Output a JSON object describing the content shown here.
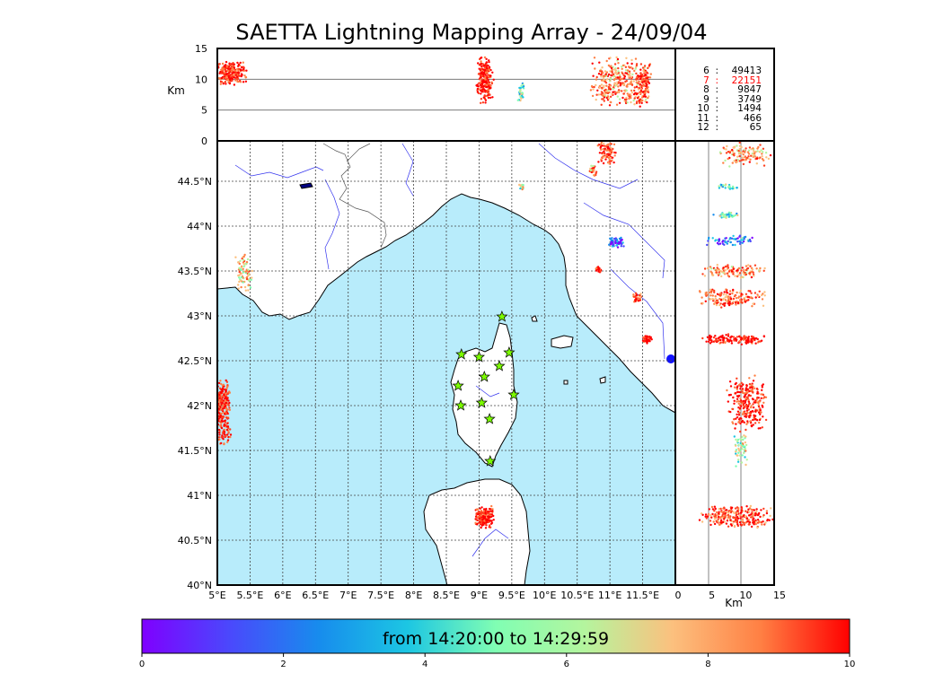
{
  "title": "SAETTA Lightning Mapping Array - 24/09/04",
  "alt_axis": {
    "label": "Km",
    "ticks": [
      "15",
      "10",
      "5",
      "0"
    ],
    "range": [
      0,
      15
    ]
  },
  "map": {
    "lon_range": [
      5.0,
      12.0
    ],
    "lat_range": [
      40.0,
      44.95
    ],
    "lon_ticks": [
      "5°E",
      "5.5°E",
      "6°E",
      "6.5°E",
      "7°E",
      "7.5°E",
      "8°E",
      "8.5°E",
      "9°E",
      "9.5°E",
      "10°E",
      "10.5°E",
      "11°E",
      "11.5°E"
    ],
    "lat_ticks": [
      "44.5°N",
      "44°N",
      "43.5°N",
      "43°N",
      "42.5°N",
      "42°N",
      "41.5°N",
      "41°N",
      "40.5°N",
      "40°N"
    ],
    "sea_color": "#b8ecfb",
    "land_color": "#ffffff",
    "station_color": "#7cfc00",
    "stations": [
      {
        "lon": 9.35,
        "lat": 42.99
      },
      {
        "lon": 8.73,
        "lat": 42.57
      },
      {
        "lon": 9.0,
        "lat": 42.54
      },
      {
        "lon": 9.46,
        "lat": 42.59
      },
      {
        "lon": 9.31,
        "lat": 42.44
      },
      {
        "lon": 9.08,
        "lat": 42.32
      },
      {
        "lon": 8.68,
        "lat": 42.22
      },
      {
        "lon": 9.53,
        "lat": 42.12
      },
      {
        "lon": 8.72,
        "lat": 42.0
      },
      {
        "lon": 9.04,
        "lat": 42.03
      },
      {
        "lon": 9.16,
        "lat": 41.85
      },
      {
        "lon": 9.17,
        "lat": 41.38
      }
    ]
  },
  "side_axis": {
    "label": "Km",
    "ticks": [
      "0",
      "5",
      "10",
      "15"
    ],
    "range": [
      0,
      15
    ]
  },
  "stats": [
    {
      "n": "6",
      "count": "49413",
      "color": "#000000"
    },
    {
      "n": "7",
      "count": "22151",
      "color": "#ff0000"
    },
    {
      "n": "8",
      "count": "9847",
      "color": "#000000"
    },
    {
      "n": "9",
      "count": "3749",
      "color": "#000000"
    },
    {
      "n": "10",
      "count": "1494",
      "color": "#000000"
    },
    {
      "n": "11",
      "count": "466",
      "color": "#000000"
    },
    {
      "n": "12",
      "count": "65",
      "color": "#000000"
    }
  ],
  "colorbar": {
    "label": "from 14:20:00 to 14:29:59",
    "ticks": [
      "0",
      "2",
      "4",
      "6",
      "8",
      "10"
    ],
    "range": [
      0,
      10
    ]
  }
}
